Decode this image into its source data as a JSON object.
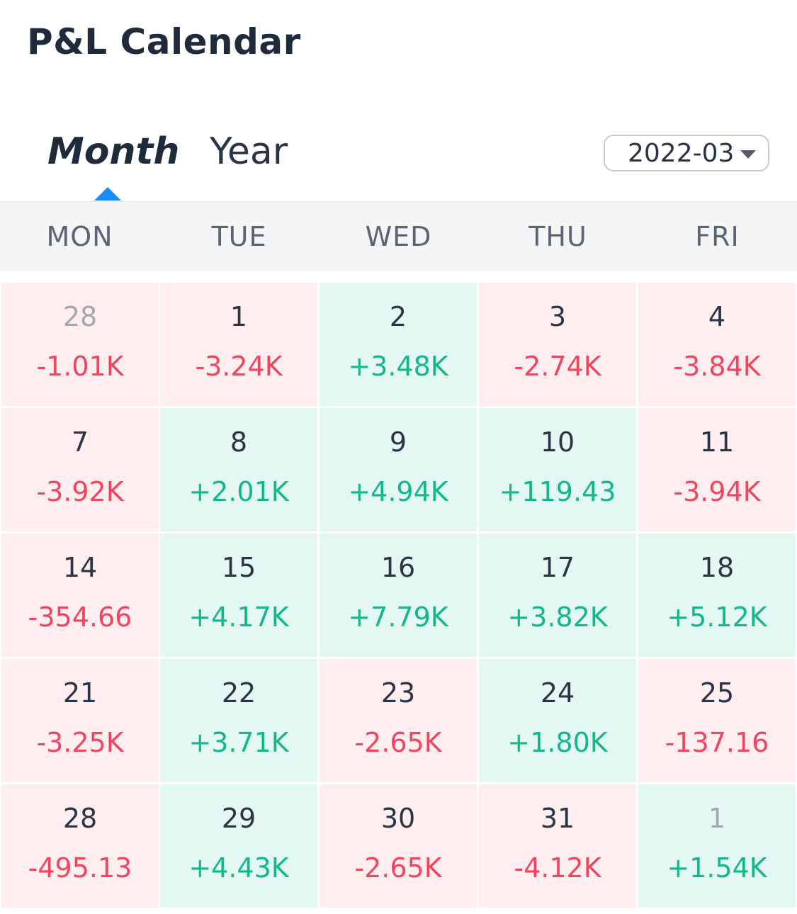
{
  "header": {
    "title": "P&L Calendar"
  },
  "tabs": [
    {
      "label": "Month",
      "active": true
    },
    {
      "label": "Year",
      "active": false
    }
  ],
  "month_selector": {
    "value": "2022-03"
  },
  "weekdays": [
    "MON",
    "TUE",
    "WED",
    "THU",
    "FRI"
  ],
  "colors": {
    "gain_text": "#12b887",
    "loss_text": "#f0445f",
    "gain_bg": "#e3f7f3",
    "loss_bg": "#feeef0",
    "accent": "#1a8cff"
  },
  "calendar": {
    "weeks": [
      [
        {
          "day": "28",
          "pnl": "-1.01K",
          "result": "loss",
          "other_month": true
        },
        {
          "day": "1",
          "pnl": "-3.24K",
          "result": "loss",
          "other_month": false
        },
        {
          "day": "2",
          "pnl": "+3.48K",
          "result": "gain",
          "other_month": false
        },
        {
          "day": "3",
          "pnl": "-2.74K",
          "result": "loss",
          "other_month": false
        },
        {
          "day": "4",
          "pnl": "-3.84K",
          "result": "loss",
          "other_month": false
        }
      ],
      [
        {
          "day": "7",
          "pnl": "-3.92K",
          "result": "loss",
          "other_month": false
        },
        {
          "day": "8",
          "pnl": "+2.01K",
          "result": "gain",
          "other_month": false
        },
        {
          "day": "9",
          "pnl": "+4.94K",
          "result": "gain",
          "other_month": false
        },
        {
          "day": "10",
          "pnl": "+119.43",
          "result": "gain",
          "other_month": false
        },
        {
          "day": "11",
          "pnl": "-3.94K",
          "result": "loss",
          "other_month": false
        }
      ],
      [
        {
          "day": "14",
          "pnl": "-354.66",
          "result": "loss",
          "other_month": false
        },
        {
          "day": "15",
          "pnl": "+4.17K",
          "result": "gain",
          "other_month": false
        },
        {
          "day": "16",
          "pnl": "+7.79K",
          "result": "gain",
          "other_month": false
        },
        {
          "day": "17",
          "pnl": "+3.82K",
          "result": "gain",
          "other_month": false
        },
        {
          "day": "18",
          "pnl": "+5.12K",
          "result": "gain",
          "other_month": false
        }
      ],
      [
        {
          "day": "21",
          "pnl": "-3.25K",
          "result": "loss",
          "other_month": false
        },
        {
          "day": "22",
          "pnl": "+3.71K",
          "result": "gain",
          "other_month": false
        },
        {
          "day": "23",
          "pnl": "-2.65K",
          "result": "loss",
          "other_month": false
        },
        {
          "day": "24",
          "pnl": "+1.80K",
          "result": "gain",
          "other_month": false
        },
        {
          "day": "25",
          "pnl": "-137.16",
          "result": "loss",
          "other_month": false
        }
      ],
      [
        {
          "day": "28",
          "pnl": "-495.13",
          "result": "loss",
          "other_month": false
        },
        {
          "day": "29",
          "pnl": "+4.43K",
          "result": "gain",
          "other_month": false
        },
        {
          "day": "30",
          "pnl": "-2.65K",
          "result": "loss",
          "other_month": false
        },
        {
          "day": "31",
          "pnl": "-4.12K",
          "result": "loss",
          "other_month": false
        },
        {
          "day": "1",
          "pnl": "+1.54K",
          "result": "gain",
          "other_month": true
        }
      ]
    ]
  }
}
